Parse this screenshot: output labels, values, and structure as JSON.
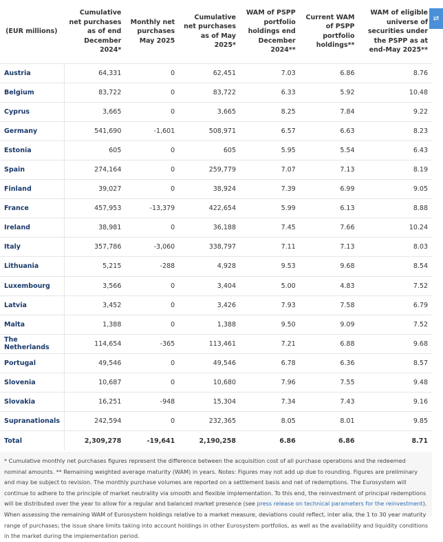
{
  "table": {
    "headers": [
      "(EUR millions)",
      "Cumulative net purchases as of end December 2024*",
      "Monthly net purchases May 2025",
      "Cumulative net purchases as of May 2025*",
      "WAM of PSPP portfolio holdings end December 2024**",
      "Current WAM of PSPP portfolio holdings**",
      "WAM of eligible universe of securities under the PSPP as at end-May 2025**"
    ],
    "rows": [
      [
        "Austria",
        "64,331",
        "0",
        "62,451",
        "7.03",
        "6.86",
        "8.76"
      ],
      [
        "Belgium",
        "83,722",
        "0",
        "83,722",
        "6.33",
        "5.92",
        "10.48"
      ],
      [
        "Cyprus",
        "3,665",
        "0",
        "3,665",
        "8.25",
        "7.84",
        "9.22"
      ],
      [
        "Germany",
        "541,690",
        "-1,601",
        "508,971",
        "6.57",
        "6.63",
        "8.23"
      ],
      [
        "Estonia",
        "605",
        "0",
        "605",
        "5.95",
        "5.54",
        "6.43"
      ],
      [
        "Spain",
        "274,164",
        "0",
        "259,779",
        "7.07",
        "7.13",
        "8.19"
      ],
      [
        "Finland",
        "39,027",
        "0",
        "38,924",
        "7.39",
        "6.99",
        "9.05"
      ],
      [
        "France",
        "457,953",
        "-13,379",
        "422,654",
        "5.99",
        "6.13",
        "8.88"
      ],
      [
        "Ireland",
        "38,981",
        "0",
        "36,188",
        "7.45",
        "7.66",
        "10.24"
      ],
      [
        "Italy",
        "357,786",
        "-3,060",
        "338,797",
        "7.11",
        "7.13",
        "8.03"
      ],
      [
        "Lithuania",
        "5,215",
        "-288",
        "4,928",
        "9.53",
        "9.68",
        "8.54"
      ],
      [
        "Luxembourg",
        "3,566",
        "0",
        "3,404",
        "5.00",
        "4.83",
        "7.52"
      ],
      [
        "Latvia",
        "3,452",
        "0",
        "3,426",
        "7.93",
        "7.58",
        "6.79"
      ],
      [
        "Malta",
        "1,388",
        "0",
        "1,388",
        "9.50",
        "9.09",
        "7.52"
      ],
      [
        "The Netherlands",
        "114,654",
        "-365",
        "113,461",
        "7.21",
        "6.88",
        "9.68"
      ],
      [
        "Portugal",
        "49,546",
        "0",
        "49,546",
        "6.78",
        "6.36",
        "8.57"
      ],
      [
        "Slovenia",
        "10,687",
        "0",
        "10,680",
        "7.96",
        "7.55",
        "9.48"
      ],
      [
        "Slovakia",
        "16,251",
        "-948",
        "15,304",
        "7.34",
        "7.43",
        "9.16"
      ],
      [
        "Supranationals",
        "242,594",
        "0",
        "232,365",
        "8.05",
        "8.01",
        "9.85"
      ],
      [
        "Total",
        "2,309,278",
        "-19,641",
        "2,190,258",
        "6.86",
        "6.86",
        "8.71"
      ]
    ]
  },
  "share": {
    "icon": "share-icon",
    "color": "#4a90d9"
  },
  "footnote": {
    "before": "* Cumulative monthly net purchases figures represent the difference between the acquisition cost of all purchase operations and the redeemed nominal amounts. ** Remaining weighted average maturity (WAM) in years. Notes: Figures may not add up due to rounding. Figures are preliminary and may be subject to revision. The monthly purchase volumes are reported on a settlement basis and net of redemptions. The Eurosystem will continue to adhere to the principle of market neutrality via smooth and flexible implementation. To this end, the reinvestment of principal redemptions will be distributed over the year to allow for a regular and balanced market presence (see ",
    "link": "press release on technical parameters for the reinvestment",
    "after": "). When assessing the remaining WAM of Eurosystem holdings relative to a market measure, deviations could reflect, inter alia, the 1 to 30 year maturity range of purchases; the issue share limits taking into account holdings in other Eurosystem portfolios, as well as the availability and liquidity conditions in the market during the implementation period."
  }
}
